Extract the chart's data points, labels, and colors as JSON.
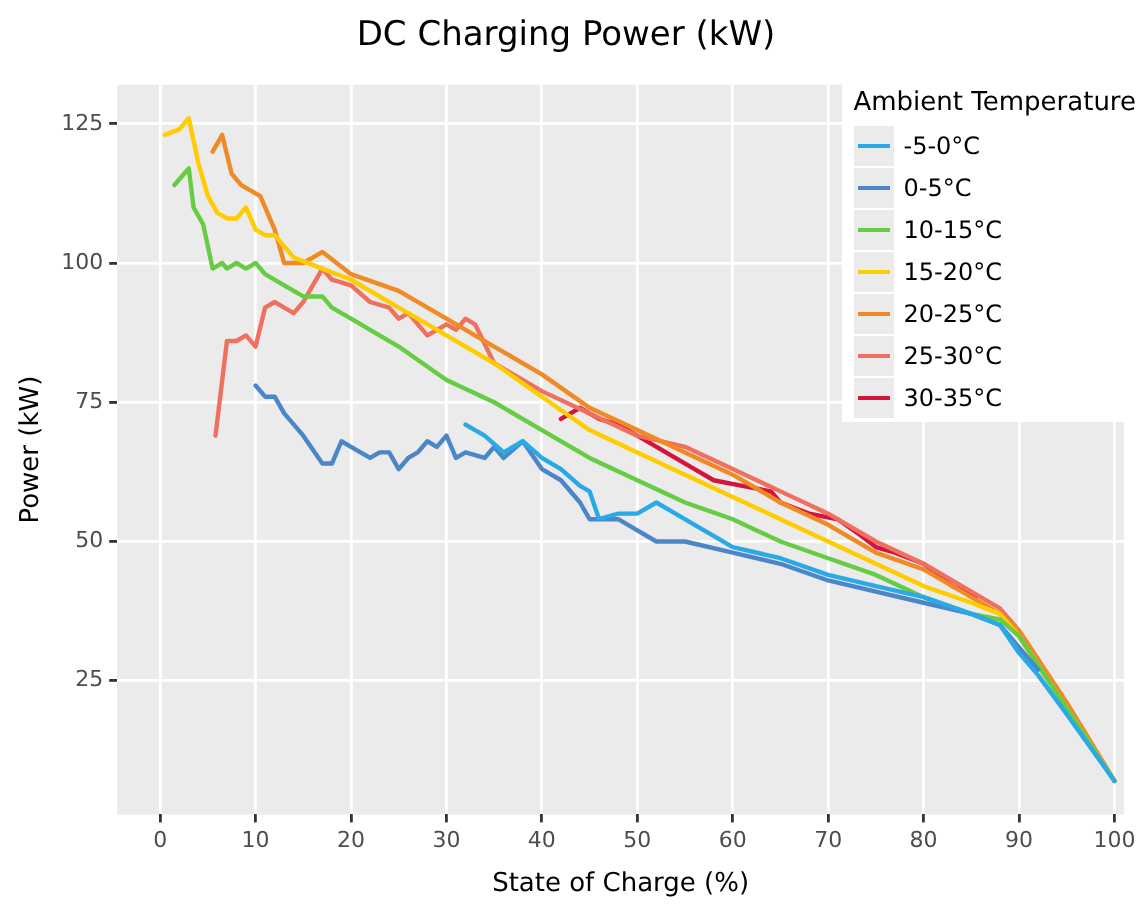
{
  "chart_data": {
    "type": "line",
    "title": "DC Charging Power (kW)",
    "xlabel": "State of Charge (%)",
    "ylabel": "Power (kW)",
    "legend_title": "Ambient Temperature",
    "legend": "top right",
    "grid": true,
    "marker": "none",
    "line_style": "solid",
    "xlim": [
      -4.5,
      101
    ],
    "xticks": [
      0,
      10,
      20,
      30,
      40,
      50,
      60,
      70,
      80,
      90,
      100
    ],
    "ylim": [
      1,
      132
    ],
    "yticks": [
      25,
      50,
      75,
      100,
      125
    ],
    "series": [
      {
        "name": "-5-0°C",
        "color": "#29a9e6",
        "x": [
          32,
          34,
          36,
          38,
          40,
          42,
          44,
          45,
          46,
          48,
          50,
          52,
          54,
          56,
          58,
          60,
          65,
          70,
          75,
          80,
          85,
          88,
          90,
          92,
          95,
          100
        ],
        "values": [
          71,
          69,
          66,
          68,
          65,
          63,
          60,
          59,
          54,
          55,
          55,
          57,
          55,
          53,
          51,
          49,
          47,
          44,
          42,
          40,
          37,
          35,
          30,
          26,
          19,
          7
        ]
      },
      {
        "name": "0-5°C",
        "color": "#4a86c8",
        "x": [
          10,
          11,
          12,
          13,
          15,
          17,
          18,
          19,
          20,
          21,
          22,
          23,
          24,
          25,
          26,
          27,
          28,
          29,
          30,
          31,
          32,
          34,
          35,
          36,
          38,
          40,
          42,
          44,
          45,
          48,
          50,
          52,
          55,
          60,
          65,
          70,
          75,
          80,
          85,
          88,
          90,
          92
        ],
        "values": [
          78,
          76,
          76,
          73,
          69,
          64,
          64,
          68,
          67,
          66,
          65,
          66,
          66,
          63,
          65,
          66,
          68,
          67,
          69,
          65,
          66,
          65,
          67,
          65,
          68,
          63,
          61,
          57,
          54,
          54,
          52,
          50,
          50,
          48,
          46,
          43,
          41,
          39,
          37,
          35,
          31,
          27
        ]
      },
      {
        "name": "10-15°C",
        "color": "#66cc44",
        "x": [
          1.5,
          3,
          3.5,
          4.5,
          5.5,
          6.5,
          7,
          8,
          9,
          10,
          11,
          13,
          15,
          17,
          18,
          20,
          25,
          30,
          35,
          40,
          45,
          50,
          55,
          60,
          65,
          70,
          75,
          80,
          85,
          88,
          90,
          95,
          100
        ],
        "values": [
          114,
          117,
          110,
          107,
          99,
          100,
          99,
          100,
          99,
          100,
          98,
          96,
          94,
          94,
          92,
          90,
          85,
          79,
          75,
          70,
          65,
          61,
          57,
          54,
          50,
          47,
          44,
          40,
          37,
          36,
          33,
          20,
          7
        ]
      },
      {
        "name": "15-20°C",
        "color": "#ffcc00",
        "x": [
          0.5,
          2,
          3,
          4,
          5,
          6,
          7,
          8,
          9,
          10,
          11,
          12,
          14,
          17,
          20,
          25,
          30,
          35,
          40,
          45,
          50,
          55,
          60,
          65,
          70,
          75,
          80,
          85,
          88,
          90,
          95,
          100
        ],
        "values": [
          123,
          124,
          126,
          118,
          112,
          109,
          108,
          108,
          110,
          106,
          105,
          105,
          101,
          99,
          97,
          92,
          87,
          82,
          76,
          70,
          66,
          62,
          58,
          54,
          50,
          46,
          42,
          39,
          37,
          33,
          20,
          7
        ]
      },
      {
        "name": "20-25°C",
        "color": "#f08a24",
        "x": [
          5.5,
          6.5,
          7.5,
          8.5,
          9.5,
          10.5,
          12,
          13,
          15,
          17,
          20,
          25,
          30,
          35,
          40,
          45,
          50,
          55,
          60,
          65,
          70,
          75,
          80,
          85,
          88,
          90,
          95,
          100
        ],
        "values": [
          120,
          123,
          116,
          114,
          113,
          112,
          106,
          100,
          100,
          102,
          98,
          95,
          90,
          85,
          80,
          74,
          70,
          66,
          62,
          57,
          53,
          48,
          45,
          40,
          37,
          34,
          21,
          7
        ]
      },
      {
        "name": "25-30°C",
        "color": "#f07060",
        "x": [
          5.8,
          7,
          8,
          9,
          10,
          11,
          12,
          13,
          14,
          15,
          16,
          17,
          18,
          20,
          22,
          24,
          25,
          26,
          28,
          30,
          31,
          32,
          33,
          35,
          37,
          40,
          45,
          50,
          55,
          60,
          65,
          70,
          75,
          80,
          85,
          88,
          90,
          95,
          100
        ],
        "values": [
          69,
          86,
          86,
          87,
          85,
          92,
          93,
          92,
          91,
          93,
          96,
          99,
          97,
          96,
          93,
          92,
          90,
          91,
          87,
          89,
          88,
          90,
          89,
          82,
          80,
          77,
          73,
          69,
          67,
          63,
          59,
          55,
          50,
          46,
          41,
          38,
          34,
          21,
          7
        ]
      },
      {
        "name": "30-35°C",
        "color": "#d4143c",
        "x": [
          42,
          44,
          46,
          48,
          50,
          53,
          56,
          58,
          61,
          64,
          65,
          68,
          71,
          73.5,
          75,
          77,
          80,
          83,
          85.5
        ],
        "values": [
          72,
          74,
          72,
          71,
          69,
          66,
          63,
          61,
          60,
          59,
          57,
          55,
          54,
          51,
          49,
          48,
          46,
          42,
          40
        ]
      }
    ]
  }
}
